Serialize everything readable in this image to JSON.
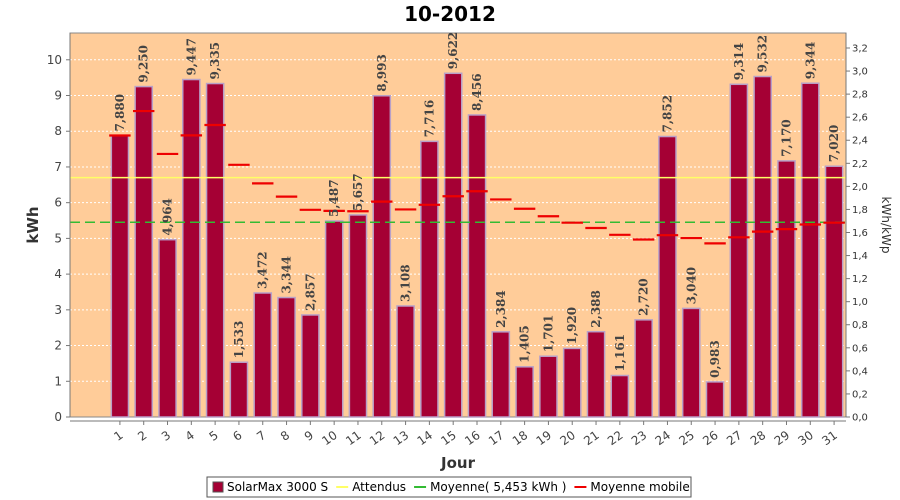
{
  "chart_data": {
    "type": "bar",
    "title": "10-2012",
    "xlabel": "Jour",
    "ylabel": "kWh",
    "y2label": "kWh/kWp",
    "ylim": [
      0,
      10.75
    ],
    "y2lim": [
      0,
      3.33
    ],
    "yticks": [
      0,
      1,
      2,
      3,
      4,
      5,
      6,
      7,
      8,
      9,
      10
    ],
    "yticklabels": [
      "0",
      "1",
      "2",
      "3",
      "4",
      "5",
      "6",
      "7",
      "8",
      "9",
      "10"
    ],
    "y2ticks": [
      0,
      0.2,
      0.4,
      0.6,
      0.8,
      1.0,
      1.2,
      1.4,
      1.6,
      1.8,
      2.0,
      2.2,
      2.4,
      2.6,
      2.8,
      3.0,
      3.2
    ],
    "y2ticklabels": [
      "0,0",
      "0,2",
      "0,4",
      "0,6",
      "0,8",
      "1,0",
      "1,2",
      "1,4",
      "1,6",
      "1,8",
      "2,0",
      "2,2",
      "2,4",
      "2,6",
      "2,8",
      "3,0",
      "3,2"
    ],
    "categories": [
      "1",
      "2",
      "3",
      "4",
      "5",
      "6",
      "7",
      "8",
      "9",
      "10",
      "11",
      "12",
      "13",
      "14",
      "15",
      "16",
      "17",
      "18",
      "19",
      "20",
      "21",
      "22",
      "23",
      "24",
      "25",
      "26",
      "27",
      "28",
      "29",
      "30",
      "31"
    ],
    "series": [
      {
        "name": "SolarMax 3000 S",
        "type": "bar",
        "color": "#a50034",
        "values": [
          7.88,
          9.25,
          4.964,
          9.447,
          9.335,
          1.533,
          3.472,
          3.344,
          2.857,
          5.487,
          5.657,
          8.993,
          3.108,
          7.716,
          9.622,
          8.456,
          2.384,
          1.405,
          1.701,
          1.92,
          2.388,
          1.161,
          2.72,
          7.852,
          3.04,
          0.983,
          9.314,
          9.532,
          7.17,
          9.344,
          7.02
        ],
        "labels": [
          "7,880",
          "9,250",
          "4,964",
          "9,447",
          "9,335",
          "1,533",
          "3,472",
          "3,344",
          "2,857",
          "5,487",
          "5,657",
          "8,993",
          "3,108",
          "7,716",
          "9,622",
          "8,456",
          "2,384",
          "1,405",
          "1,701",
          "1,920",
          "2,388",
          "1,161",
          "2,720",
          "7,852",
          "3,040",
          "0,983",
          "9,314",
          "9,532",
          "7,170",
          "9,344",
          "7,020"
        ]
      },
      {
        "name": "Attendus",
        "type": "line",
        "color": "#ffff66",
        "value": 6.7
      },
      {
        "name": "Moyenne( 5,453 kWh )",
        "type": "line",
        "color": "#33bb33",
        "value": 5.453
      },
      {
        "name": "Moyenne mobile",
        "type": "step",
        "color": "#ee0000",
        "values": [
          7.88,
          8.565,
          7.365,
          7.885,
          8.175,
          7.06,
          6.54,
          6.17,
          5.8,
          5.77,
          5.76,
          6.03,
          5.81,
          5.94,
          6.18,
          6.32,
          6.09,
          5.83,
          5.62,
          5.44,
          5.29,
          5.1,
          4.97,
          5.09,
          5.01,
          4.86,
          5.03,
          5.19,
          5.26,
          5.39,
          5.44
        ]
      }
    ],
    "legend_position": "bottom",
    "grid": true,
    "plot_background": "#ffcc99"
  }
}
